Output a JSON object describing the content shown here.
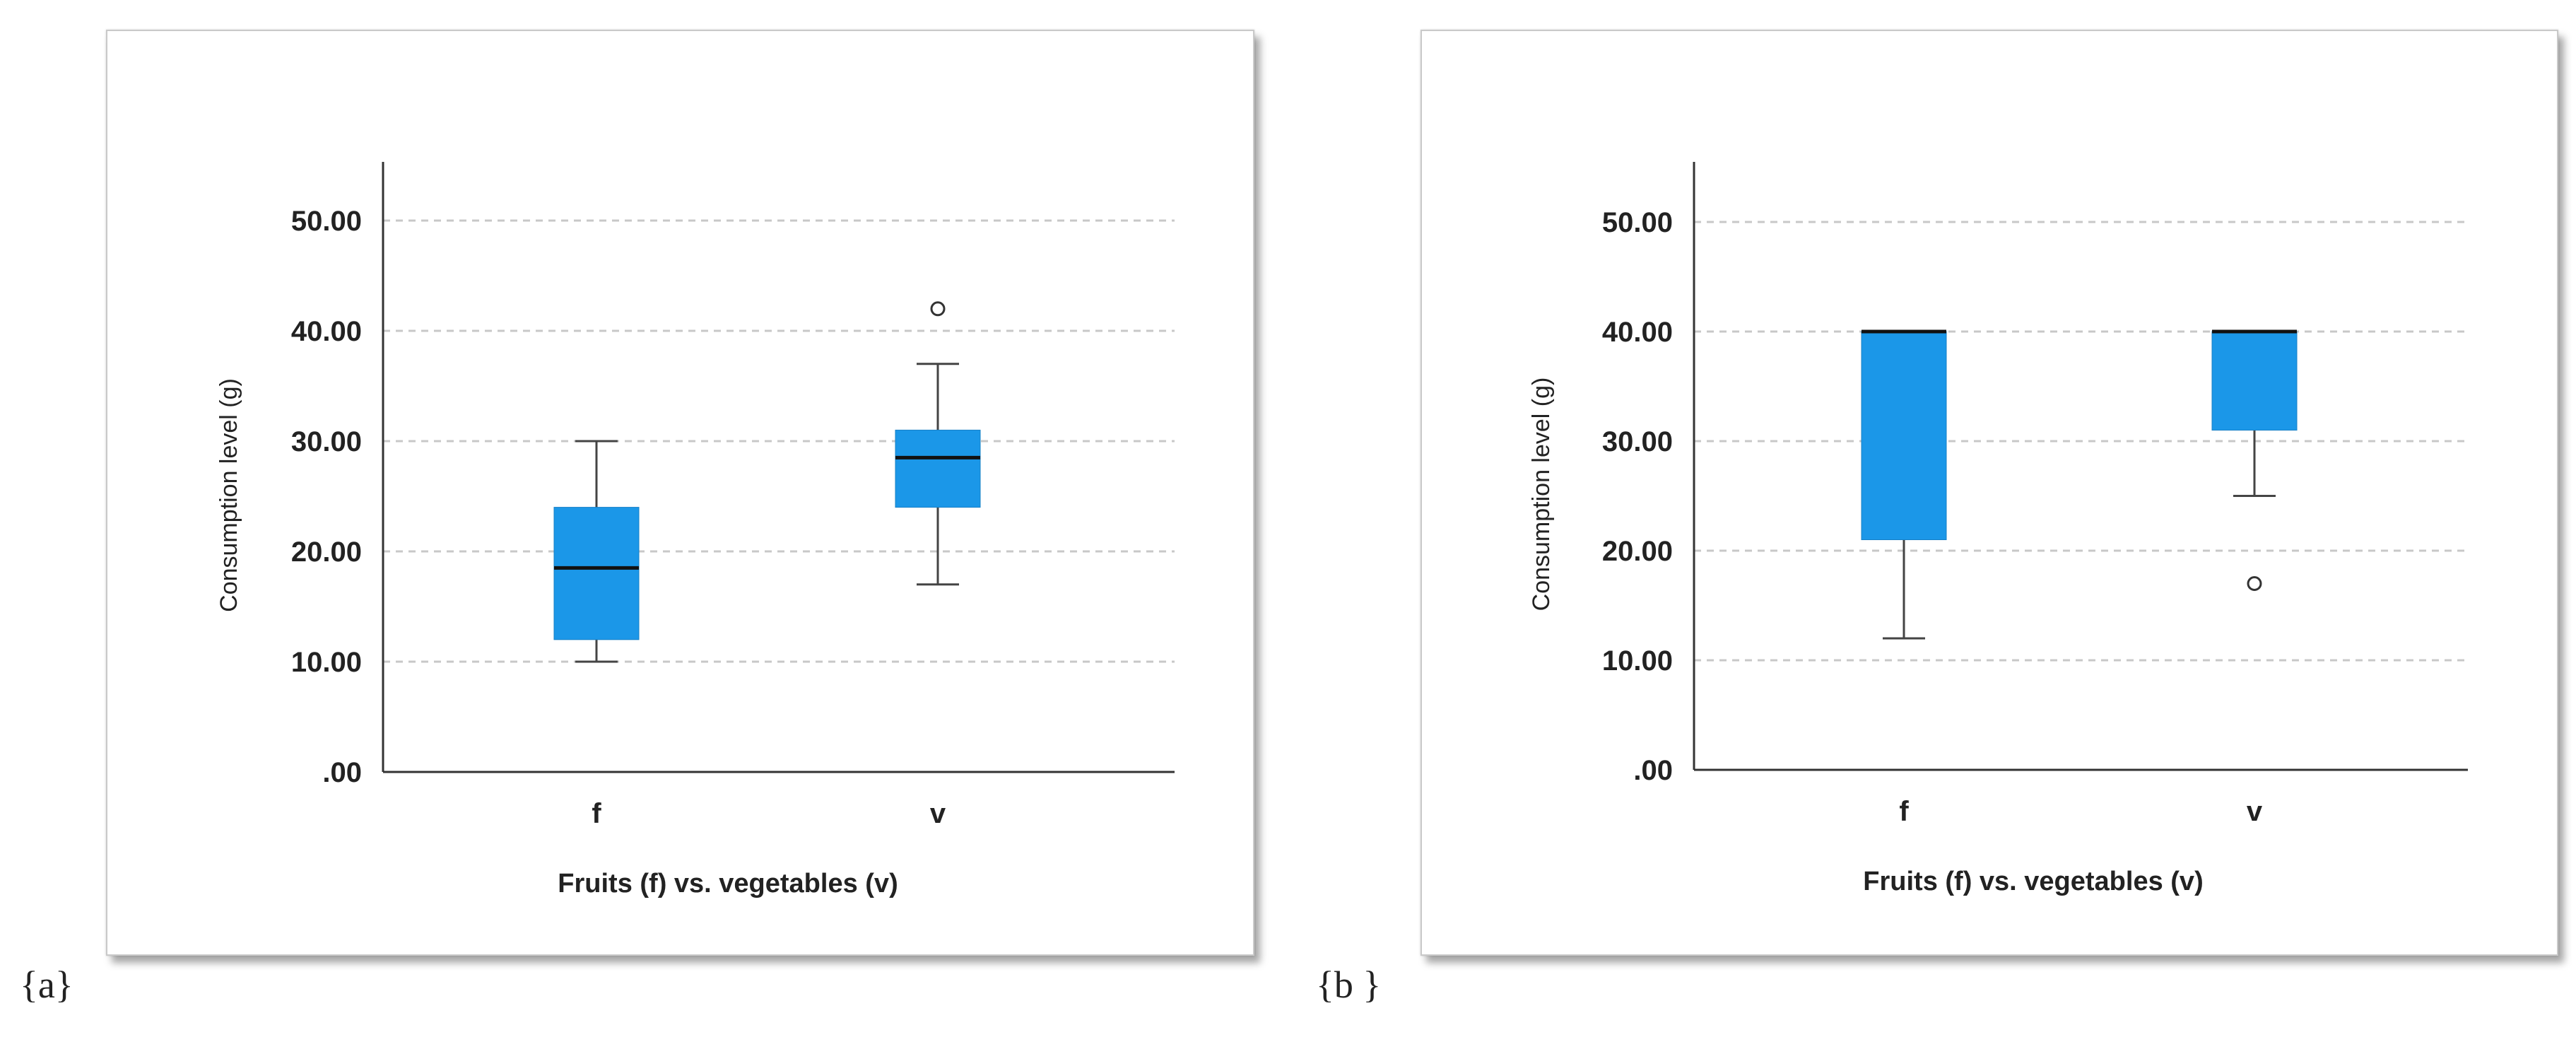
{
  "colors": {
    "box_fill": "#1b97e8",
    "median": "#111111",
    "whisker": "#444444",
    "grid": "#c8c8c8",
    "axis": "#333333"
  },
  "chart_data": [
    {
      "panel_label": "{a}",
      "type": "box",
      "xlabel": "Fruits (f) vs. vegetables (v)",
      "ylabel": "Consumption level (g)",
      "ylim": [
        0,
        55
      ],
      "yticks": [
        0,
        10,
        20,
        30,
        40,
        50
      ],
      "ytick_labels": [
        ".00",
        "10.00",
        "20.00",
        "30.00",
        "40.00",
        "50.00"
      ],
      "grid": "horizontal dashed",
      "categories": [
        "f",
        "v"
      ],
      "boxes": [
        {
          "category": "f",
          "min": 10,
          "q1": 12,
          "median": 18.5,
          "q3": 24,
          "max": 30,
          "outliers": []
        },
        {
          "category": "v",
          "min": 17,
          "q1": 24,
          "median": 28.5,
          "q3": 31,
          "max": 37,
          "outliers": [
            42
          ]
        }
      ]
    },
    {
      "panel_label": "{b }",
      "type": "box",
      "xlabel": "Fruits (f) vs. vegetables (v)",
      "ylabel": "Consumption level (g)",
      "ylim": [
        0,
        55
      ],
      "yticks": [
        0,
        10,
        20,
        30,
        40,
        50
      ],
      "ytick_labels": [
        ".00",
        "10.00",
        "20.00",
        "30.00",
        "40.00",
        "50.00"
      ],
      "grid": "horizontal dashed",
      "categories": [
        "f",
        "v"
      ],
      "boxes": [
        {
          "category": "f",
          "min": 12,
          "q1": 21,
          "median": 40,
          "q3": 40,
          "max": 40,
          "outliers": []
        },
        {
          "category": "v",
          "min": 25,
          "q1": 31,
          "median": 40,
          "q3": 40,
          "max": 40,
          "outliers": [
            17
          ]
        }
      ]
    }
  ]
}
